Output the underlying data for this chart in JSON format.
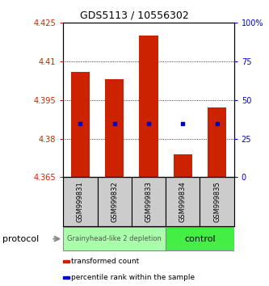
{
  "title": "GDS5113 / 10556302",
  "samples": [
    "GSM999831",
    "GSM999832",
    "GSM999833",
    "GSM999834",
    "GSM999835"
  ],
  "bar_bottoms": [
    4.365,
    4.365,
    4.365,
    4.365,
    4.365
  ],
  "bar_tops": [
    4.406,
    4.403,
    4.42,
    4.374,
    4.392
  ],
  "blue_marker_y": [
    4.386,
    4.386,
    4.386,
    4.386,
    4.386
  ],
  "bar_color": "#cc2200",
  "blue_color": "#0000cc",
  "ylim_left": [
    4.365,
    4.425
  ],
  "ylim_right": [
    0,
    100
  ],
  "yticks_left": [
    4.365,
    4.38,
    4.395,
    4.41,
    4.425
  ],
  "yticks_right": [
    0,
    25,
    50,
    75,
    100
  ],
  "ytick_labels_left": [
    "4.365",
    "4.38",
    "4.395",
    "4.41",
    "4.425"
  ],
  "ytick_labels_right": [
    "0",
    "25",
    "50",
    "75",
    "100%"
  ],
  "groups": [
    {
      "label": "Grainyhead-like 2 depletion",
      "color": "#aaffaa",
      "n_samples": 3
    },
    {
      "label": "control",
      "color": "#44ee44",
      "n_samples": 2
    }
  ],
  "protocol_label": "protocol",
  "legend_items": [
    {
      "color": "#cc2200",
      "label": "transformed count"
    },
    {
      "color": "#0000cc",
      "label": "percentile rank within the sample"
    }
  ],
  "bar_width": 0.55,
  "background_color": "#ffffff",
  "plot_bg": "#ffffff",
  "tick_label_color_left": "#cc2200",
  "tick_label_color_right": "#0000dd",
  "sample_box_color": "#cccccc"
}
